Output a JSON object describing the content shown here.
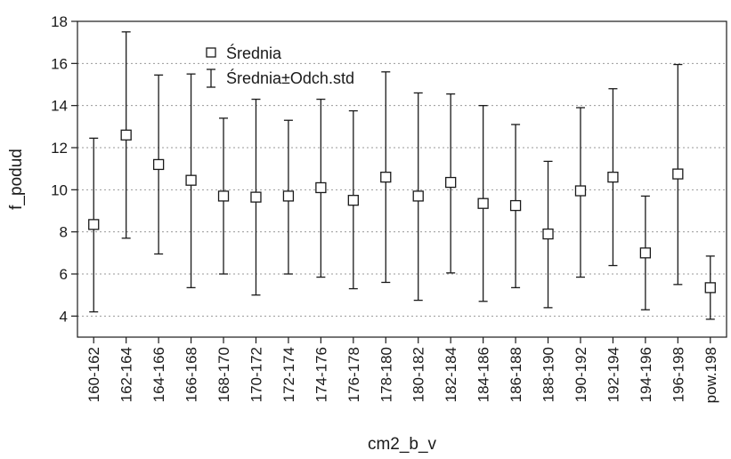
{
  "chart_data": {
    "type": "scatter",
    "title": "",
    "xlabel": "cm2_b_v",
    "ylabel": "f_podud",
    "ylim": [
      3,
      18
    ],
    "yticks": [
      4,
      6,
      8,
      10,
      12,
      14,
      16,
      18
    ],
    "grid": true,
    "legend_position": "top-left",
    "categories": [
      "160-162",
      "162-164",
      "164-166",
      "166-168",
      "168-170",
      "170-172",
      "172-174",
      "174-176",
      "176-178",
      "178-180",
      "180-182",
      "182-184",
      "184-186",
      "186-188",
      "188-190",
      "190-192",
      "192-194",
      "194-196",
      "196-198",
      "pow.198"
    ],
    "series": [
      {
        "name": "Średnia",
        "marker": "square",
        "values": [
          8.35,
          12.6,
          11.2,
          10.45,
          9.7,
          9.65,
          9.7,
          10.1,
          9.5,
          10.6,
          9.7,
          10.35,
          9.35,
          9.25,
          7.9,
          9.95,
          10.6,
          7.0,
          10.75,
          5.35
        ]
      },
      {
        "name": "Średnia±Odch.std",
        "marker": "whisker",
        "lower": [
          4.2,
          7.7,
          6.95,
          5.35,
          6.0,
          5.0,
          6.0,
          5.85,
          5.3,
          5.6,
          4.75,
          6.05,
          4.7,
          5.35,
          4.4,
          5.85,
          6.4,
          4.3,
          5.5,
          3.85
        ],
        "upper": [
          12.45,
          17.5,
          15.45,
          15.5,
          13.4,
          14.3,
          13.3,
          14.3,
          13.75,
          15.6,
          14.6,
          14.55,
          14.0,
          13.1,
          11.35,
          13.9,
          14.8,
          9.7,
          15.95,
          6.85
        ]
      }
    ]
  },
  "colors": {
    "mark": "#1a1a1a",
    "grid": "#9a9a9a",
    "background": "#ffffff"
  }
}
